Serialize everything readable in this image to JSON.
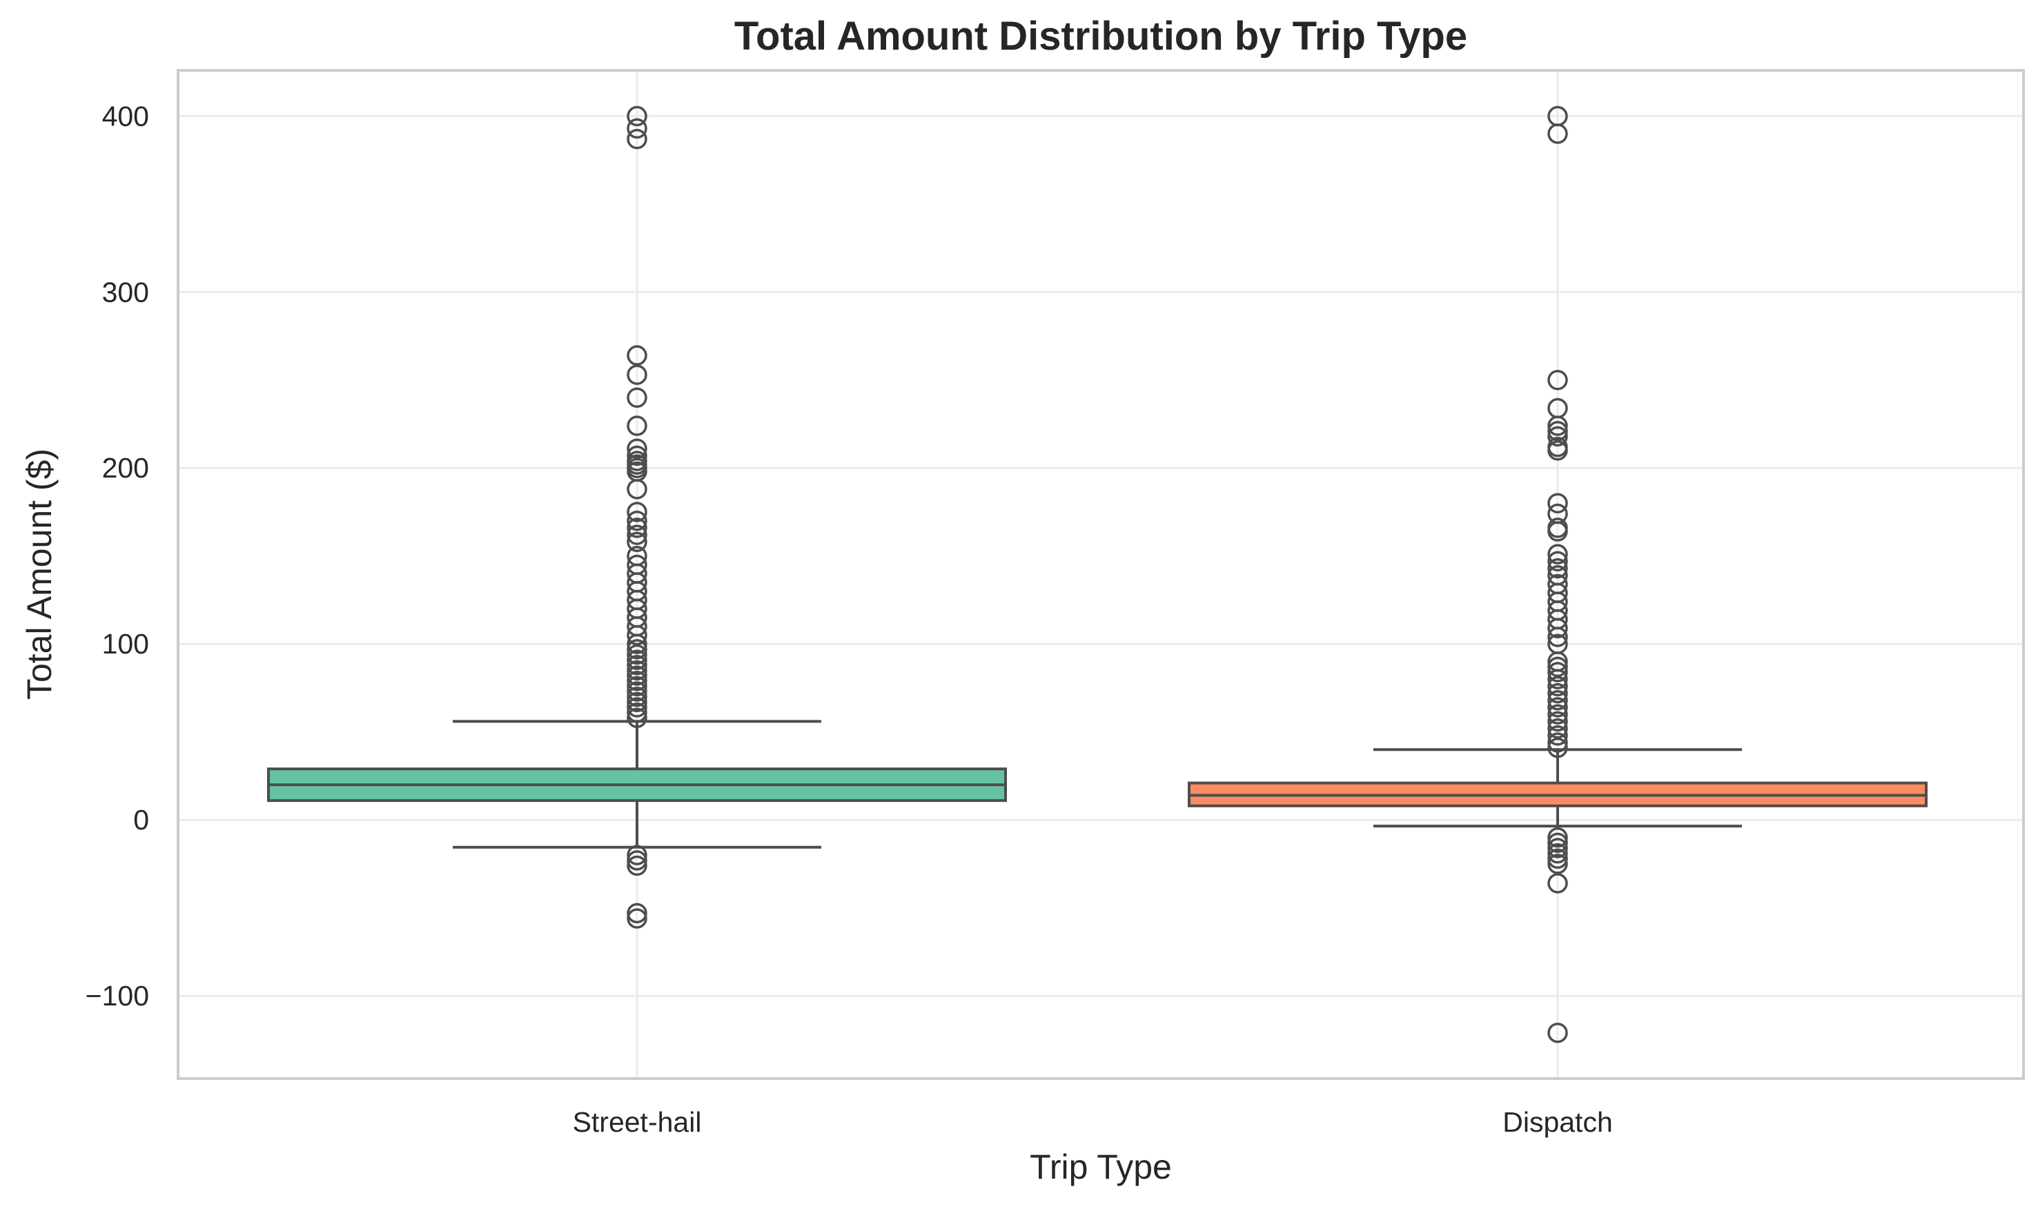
{
  "chart_data": {
    "type": "box",
    "title": "Total Amount Distribution by Trip Type",
    "xlabel": "Trip Type",
    "ylabel": "Total Amount ($)",
    "ylim": [
      -147,
      426
    ],
    "yticks": [
      -100,
      0,
      100,
      200,
      300,
      400
    ],
    "ytick_labels": [
      "−100",
      "0",
      "100",
      "200",
      "300",
      "400"
    ],
    "grid": true,
    "categories": [
      "Street-hail",
      "Dispatch"
    ],
    "boxes": [
      {
        "category": "Street-hail",
        "color": "#66c2a5",
        "whisker_low": -15.5,
        "q1": 11,
        "median": 20,
        "q3": 29,
        "whisker_high": 56,
        "outliers": [
          400,
          393,
          387,
          264,
          253,
          240,
          224,
          211,
          207,
          204,
          202,
          200,
          198,
          188,
          175,
          170,
          166,
          162,
          158,
          150,
          145,
          140,
          135,
          130,
          125,
          120,
          115,
          110,
          105,
          100,
          97,
          94,
          91,
          88,
          85,
          82,
          79,
          76,
          73,
          70,
          67,
          64,
          61,
          58,
          -20,
          -23,
          -26,
          -53,
          -56
        ]
      },
      {
        "category": "Dispatch",
        "color": "#fc8d62",
        "whisker_low": -3.5,
        "q1": 8,
        "median": 14,
        "q3": 21,
        "whisker_high": 40,
        "outliers": [
          400,
          390,
          250,
          234,
          224,
          221,
          218,
          212,
          210,
          180,
          174,
          166,
          164,
          151,
          147,
          143,
          139,
          134,
          129,
          124,
          119,
          114,
          109,
          104,
          100,
          90,
          87,
          84,
          80,
          76,
          72,
          68,
          64,
          60,
          56,
          52,
          48,
          44,
          41,
          -10,
          -13,
          -16,
          -19,
          -22,
          -25,
          -36,
          -121
        ]
      }
    ]
  }
}
